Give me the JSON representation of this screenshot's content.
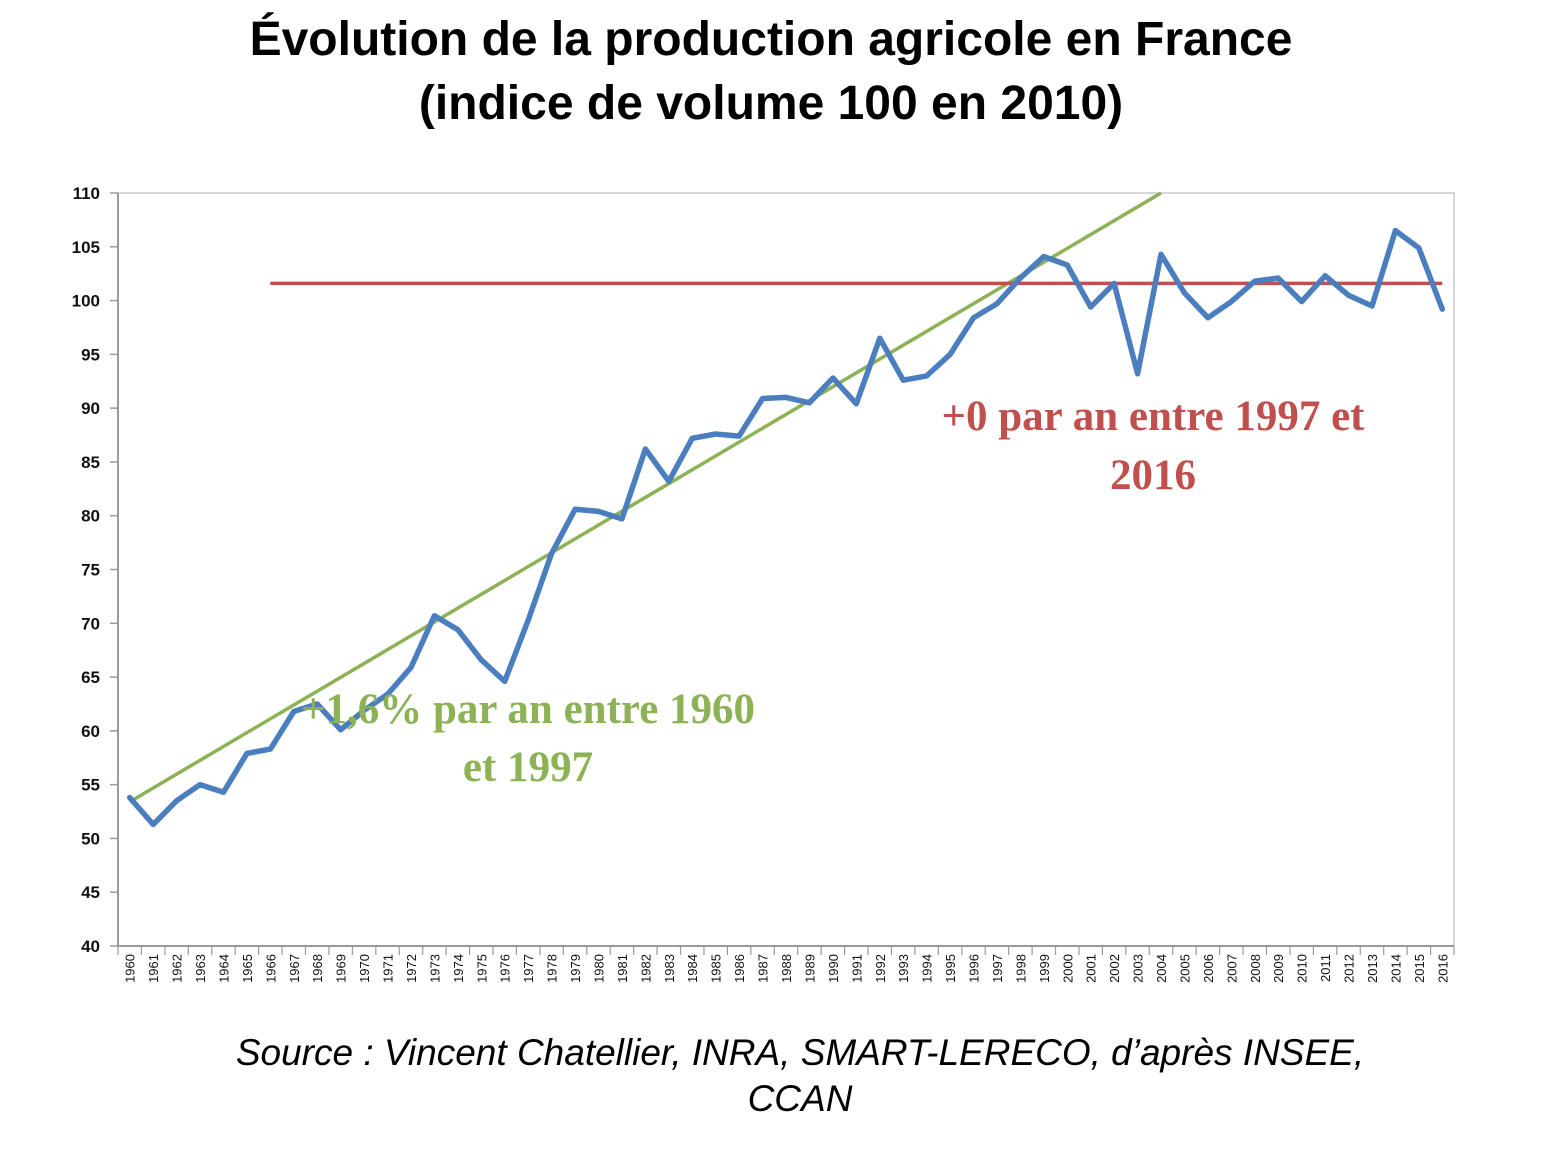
{
  "title": {
    "line1": "Évolution de la production agricole en France",
    "line2": "(indice de volume 100 en 2010)"
  },
  "source": {
    "line1": "Source : Vincent Chatellier, INRA, SMART-LERECO, d’après INSEE,",
    "line2": "CCAN"
  },
  "colors": {
    "series": "#4a7ebf",
    "trend": "#8db155",
    "plateau": "#c0504d",
    "axis": "#9a9a9a",
    "plot_border": "#c8c8c8"
  },
  "chart_data": {
    "type": "line",
    "title": "Évolution de la production agricole en France (indice de volume 100 en 2010)",
    "xlabel": "",
    "ylabel": "",
    "ylim": [
      40,
      110
    ],
    "yticks": [
      40,
      45,
      50,
      55,
      60,
      65,
      70,
      75,
      80,
      85,
      90,
      95,
      100,
      105,
      110
    ],
    "grid": false,
    "legend": "none",
    "categories": [
      "1960",
      "1961",
      "1962",
      "1963",
      "1964",
      "1965",
      "1966",
      "1967",
      "1968",
      "1969",
      "1970",
      "1971",
      "1972",
      "1973",
      "1974",
      "1975",
      "1976",
      "1977",
      "1978",
      "1979",
      "1980",
      "1981",
      "1982",
      "1983",
      "1984",
      "1985",
      "1986",
      "1987",
      "1988",
      "1989",
      "1990",
      "1991",
      "1992",
      "1993",
      "1994",
      "1995",
      "1996",
      "1997",
      "1998",
      "1999",
      "2000",
      "2001",
      "2002",
      "2003",
      "2004",
      "2005",
      "2006",
      "2007",
      "2008",
      "2009",
      "2010",
      "2011",
      "2012",
      "2013",
      "2014",
      "2015",
      "2016"
    ],
    "series": [
      {
        "values": [
          53.8,
          51.3,
          53.5,
          55.0,
          54.3,
          57.9,
          58.3,
          61.8,
          62.5,
          60.1,
          61.9,
          63.4,
          65.9,
          70.7,
          69.4,
          66.6,
          64.6,
          70.3,
          76.5,
          80.6,
          80.4,
          79.7,
          86.2,
          83.2,
          87.2,
          87.6,
          87.4,
          90.9,
          91.0,
          90.5,
          92.8,
          90.4,
          96.5,
          92.6,
          93.0,
          95.0,
          98.4,
          99.7,
          102.1,
          104.1,
          103.3,
          99.4,
          101.6,
          93.2,
          104.3,
          100.7,
          98.4,
          99.9,
          101.8,
          102.1,
          99.9,
          102.3,
          100.5,
          99.5,
          106.5,
          104.9,
          99.2
        ]
      }
    ],
    "trendlines": [
      {
        "label": "+1,6% par an entre 1960 et 1997",
        "x": [
          "1960",
          "2004"
        ],
        "y": [
          53.4,
          110
        ]
      },
      {
        "label": "+0 par an entre 1997 et 2016",
        "x": [
          "1966",
          "2016"
        ],
        "y": [
          101.6,
          101.6
        ]
      }
    ],
    "annotations": [
      {
        "lines": [
          "+1,6% par an entre 1960",
          "et 1997"
        ]
      },
      {
        "lines": [
          "+0 par an entre 1997 et",
          "2016"
        ]
      }
    ]
  }
}
